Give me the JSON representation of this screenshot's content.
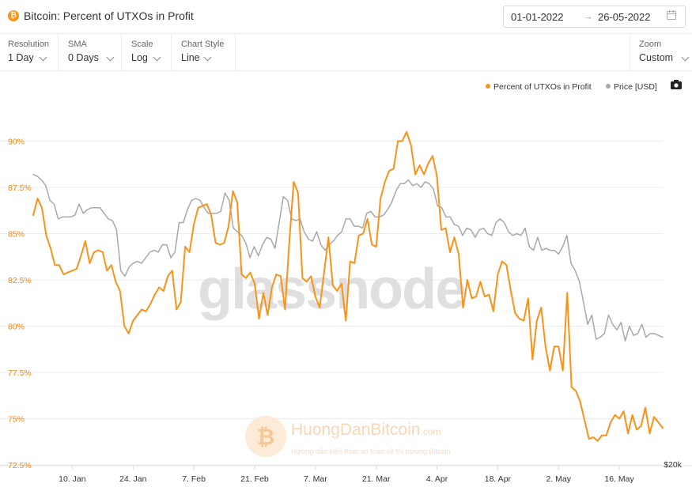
{
  "header": {
    "icon_glyph": "₿",
    "title": "Bitcoin: Percent of UTXOs in Profit",
    "date_from": "01-01-2022",
    "date_arrow": "→",
    "date_to": "26-05-2022"
  },
  "controls": [
    {
      "label": "Resolution",
      "value": "1 Day"
    },
    {
      "label": "SMA",
      "value": "0 Days"
    },
    {
      "label": "Scale",
      "value": "Log"
    },
    {
      "label": "Chart Style",
      "value": "Line"
    }
  ],
  "zoom": {
    "label": "Zoom",
    "value": "Custom"
  },
  "watermark": {
    "main": "glassnode",
    "brand": "HuongDanBitcoin",
    "brand_suffix": ".com",
    "tagline": "Hướng dẫn kiến thức an toàn về thị trường Bitcoin"
  },
  "colors": {
    "series_primary": "#f7931a",
    "series_price": "#a8a8a8",
    "axis_left_text": "#e8891a"
  },
  "chart_data": {
    "type": "line",
    "title": "Bitcoin: Percent of UTXOs in Profit",
    "grid": true,
    "legend_position": "top-right",
    "x_start": "2022-01-01",
    "x_end": "2022-05-26",
    "x_ticks": [
      "10. Jan",
      "24. Jan",
      "7. Feb",
      "21. Feb",
      "7. Mar",
      "21. Mar",
      "4. Apr",
      "18. Apr",
      "2. May",
      "16. May"
    ],
    "y_left": {
      "ticks": [
        "72.5%",
        "75%",
        "77.5%",
        "80%",
        "82.5%",
        "85%",
        "87.5%",
        "90%"
      ],
      "range": [
        72.5,
        92.5
      ],
      "unit": "%"
    },
    "y_right": {
      "ticks": [
        "$20k"
      ],
      "scale": "log"
    },
    "series": [
      {
        "name": "Percent of UTXOs in Profit",
        "axis": "left",
        "color": "#f7931a",
        "values": [
          86.0,
          86.9,
          86.4,
          84.9,
          84.2,
          83.3,
          83.3,
          82.8,
          82.9,
          83.0,
          83.1,
          83.8,
          84.6,
          83.4,
          84.0,
          84.1,
          84.0,
          83.0,
          83.3,
          82.4,
          81.9,
          80.0,
          79.6,
          80.3,
          80.6,
          80.9,
          80.8,
          81.2,
          81.7,
          82.1,
          81.9,
          82.7,
          83.0,
          80.9,
          81.3,
          84.3,
          84.0,
          85.5,
          86.4,
          86.5,
          86.6,
          86.0,
          84.5,
          84.4,
          84.5,
          85.4,
          87.3,
          86.7,
          82.8,
          82.6,
          82.9,
          82.3,
          80.4,
          81.8,
          80.6,
          82.1,
          82.8,
          82.7,
          80.9,
          84.6,
          87.8,
          87.2,
          82.6,
          82.4,
          82.7,
          81.6,
          81.0,
          82.9,
          84.8,
          82.2,
          81.9,
          82.3,
          80.3,
          83.5,
          83.4,
          84.9,
          85.0,
          85.8,
          84.4,
          84.3,
          86.9,
          87.8,
          88.4,
          88.5,
          90.0,
          90.0,
          90.5,
          89.8,
          88.2,
          88.7,
          88.2,
          88.8,
          89.2,
          88.1,
          85.2,
          85.3,
          84.0,
          84.8,
          83.9,
          81.0,
          82.5,
          81.5,
          81.6,
          82.4,
          81.6,
          81.7,
          80.8,
          82.8,
          83.5,
          83.3,
          81.9,
          80.7,
          80.4,
          80.3,
          81.5,
          78.2,
          80.3,
          81.0,
          78.9,
          77.6,
          78.9,
          78.9,
          77.6,
          81.8,
          76.7,
          76.5,
          75.9,
          74.9,
          73.9,
          74.0,
          73.8,
          74.1,
          74.1,
          74.8,
          75.2,
          75.0,
          75.4,
          74.2,
          75.2,
          74.4,
          74.6,
          75.6,
          74.2,
          75.1,
          74.8,
          74.5
        ]
      },
      {
        "name": "Price [USD]",
        "axis": "right",
        "color": "#a8a8a8",
        "values": [
          88.2,
          88.1,
          87.9,
          87.6,
          86.8,
          86.6,
          85.8,
          85.9,
          85.9,
          85.9,
          86.0,
          86.6,
          86.1,
          86.3,
          86.4,
          86.4,
          86.4,
          86.1,
          85.8,
          85.7,
          85.2,
          83.0,
          82.7,
          83.2,
          83.4,
          83.5,
          83.4,
          83.7,
          84.0,
          84.1,
          84.0,
          84.4,
          84.4,
          83.7,
          84.0,
          85.6,
          85.6,
          86.3,
          86.8,
          86.9,
          86.8,
          86.4,
          86.1,
          86.1,
          86.1,
          86.2,
          87.2,
          86.8,
          85.3,
          85.1,
          84.9,
          84.5,
          83.7,
          84.3,
          83.8,
          84.4,
          84.8,
          84.7,
          84.2,
          85.6,
          87.0,
          86.8,
          85.8,
          85.7,
          85.8,
          85.1,
          84.7,
          84.6,
          85.1,
          84.4,
          84.1,
          84.4,
          84.6,
          84.9,
          85.1,
          85.8,
          85.8,
          85.4,
          85.4,
          85.3,
          86.1,
          86.2,
          85.9,
          85.9,
          86.0,
          86.3,
          86.7,
          87.3,
          87.7,
          87.7,
          87.9,
          87.6,
          87.7,
          87.5,
          87.8,
          87.7,
          87.4,
          86.5,
          86.4,
          85.9,
          85.9,
          85.5,
          85.4,
          84.9,
          85.3,
          85.2,
          84.8,
          85.2,
          85.3,
          85.0,
          84.9,
          85.6,
          85.8,
          85.6,
          85.1,
          84.9,
          85.0,
          84.9,
          85.3,
          84.3,
          84.1,
          84.8,
          84.1,
          84.2,
          84.1,
          84.1,
          83.9,
          84.3,
          84.9,
          83.4,
          83.0,
          82.4,
          81.3,
          80.1,
          80.6,
          79.3,
          79.4,
          79.6,
          80.6,
          80.1,
          79.8,
          80.2,
          79.2,
          80.0,
          79.5,
          79.6,
          80.1,
          79.4,
          79.6,
          79.6,
          79.5,
          79.4
        ]
      }
    ]
  }
}
